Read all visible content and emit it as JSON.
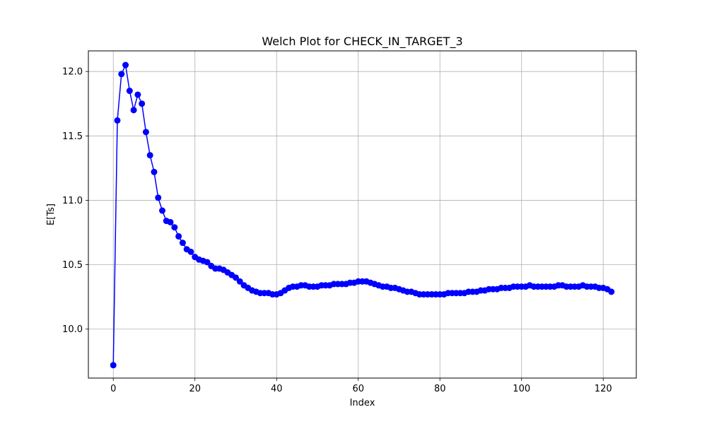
{
  "chart_data": {
    "type": "line",
    "title": "Welch Plot for CHECK_IN_TARGET_3",
    "xlabel": "Index",
    "ylabel": "E[Ts]",
    "xlim": [
      -6.1,
      128.1
    ],
    "ylim": [
      9.62,
      12.16
    ],
    "xticks": [
      0,
      20,
      40,
      60,
      80,
      100,
      120
    ],
    "yticks": [
      10.0,
      10.5,
      11.0,
      11.5,
      12.0
    ],
    "xtick_labels": [
      "0",
      "20",
      "40",
      "60",
      "80",
      "100",
      "120"
    ],
    "ytick_labels": [
      "10.0",
      "10.5",
      "11.0",
      "11.5",
      "12.0"
    ],
    "grid": true,
    "series": [
      {
        "color": "#0000ff",
        "marker": "circle",
        "x": [
          0,
          1,
          2,
          3,
          4,
          5,
          6,
          7,
          8,
          9,
          10,
          11,
          12,
          13,
          14,
          15,
          16,
          17,
          18,
          19,
          20,
          21,
          22,
          23,
          24,
          25,
          26,
          27,
          28,
          29,
          30,
          31,
          32,
          33,
          34,
          35,
          36,
          37,
          38,
          39,
          40,
          41,
          42,
          43,
          44,
          45,
          46,
          47,
          48,
          49,
          50,
          51,
          52,
          53,
          54,
          55,
          56,
          57,
          58,
          59,
          60,
          61,
          62,
          63,
          64,
          65,
          66,
          67,
          68,
          69,
          70,
          71,
          72,
          73,
          74,
          75,
          76,
          77,
          78,
          79,
          80,
          81,
          82,
          83,
          84,
          85,
          86,
          87,
          88,
          89,
          90,
          91,
          92,
          93,
          94,
          95,
          96,
          97,
          98,
          99,
          100,
          101,
          102,
          103,
          104,
          105,
          106,
          107,
          108,
          109,
          110,
          111,
          112,
          113,
          114,
          115,
          116,
          117,
          118,
          119,
          120,
          121,
          122
        ],
        "y": [
          9.72,
          11.62,
          11.98,
          12.05,
          11.85,
          11.7,
          11.82,
          11.75,
          11.53,
          11.35,
          11.22,
          11.02,
          10.92,
          10.84,
          10.83,
          10.79,
          10.72,
          10.67,
          10.62,
          10.6,
          10.56,
          10.54,
          10.53,
          10.52,
          10.49,
          10.47,
          10.47,
          10.46,
          10.44,
          10.42,
          10.4,
          10.37,
          10.34,
          10.32,
          10.3,
          10.29,
          10.28,
          10.28,
          10.28,
          10.27,
          10.27,
          10.28,
          10.3,
          10.32,
          10.33,
          10.33,
          10.34,
          10.34,
          10.33,
          10.33,
          10.33,
          10.34,
          10.34,
          10.34,
          10.35,
          10.35,
          10.35,
          10.35,
          10.36,
          10.36,
          10.37,
          10.37,
          10.37,
          10.36,
          10.35,
          10.34,
          10.33,
          10.33,
          10.32,
          10.32,
          10.31,
          10.3,
          10.29,
          10.29,
          10.28,
          10.27,
          10.27,
          10.27,
          10.27,
          10.27,
          10.27,
          10.27,
          10.28,
          10.28,
          10.28,
          10.28,
          10.28,
          10.29,
          10.29,
          10.29,
          10.3,
          10.3,
          10.31,
          10.31,
          10.31,
          10.32,
          10.32,
          10.32,
          10.33,
          10.33,
          10.33,
          10.33,
          10.34,
          10.33,
          10.33,
          10.33,
          10.33,
          10.33,
          10.33,
          10.34,
          10.34,
          10.33,
          10.33,
          10.33,
          10.33,
          10.34,
          10.33,
          10.33,
          10.33,
          10.32,
          10.32,
          10.31,
          10.29
        ]
      }
    ]
  }
}
